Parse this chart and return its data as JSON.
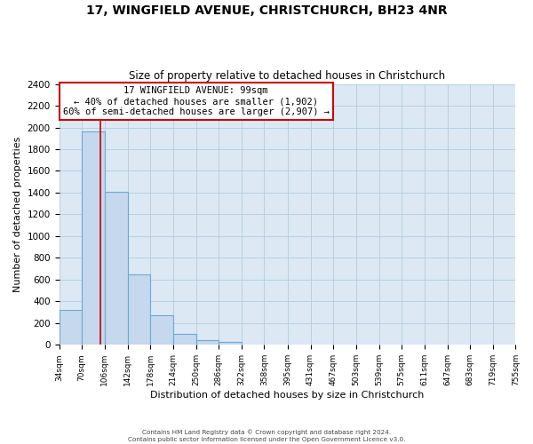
{
  "title": "17, WINGFIELD AVENUE, CHRISTCHURCH, BH23 4NR",
  "subtitle": "Size of property relative to detached houses in Christchurch",
  "xlabel": "Distribution of detached houses by size in Christchurch",
  "ylabel": "Number of detached properties",
  "bin_edges": [
    34,
    70,
    106,
    142,
    178,
    214,
    250,
    286,
    322,
    358,
    395,
    431,
    467,
    503,
    539,
    575,
    611,
    647,
    683,
    719,
    755
  ],
  "bin_counts": [
    325,
    1960,
    1410,
    650,
    275,
    100,
    45,
    25,
    0,
    0,
    0,
    0,
    0,
    0,
    0,
    0,
    0,
    0,
    0,
    0
  ],
  "bar_color": "#c5d8ee",
  "bar_edge_color": "#6aaad4",
  "property_line_x": 99,
  "annotation_text_line1": "17 WINGFIELD AVENUE: 99sqm",
  "annotation_text_line2": "← 40% of detached houses are smaller (1,902)",
  "annotation_text_line3": "60% of semi-detached houses are larger (2,907) →",
  "annotation_box_color": "#ffffff",
  "annotation_box_edge_color": "#cc0000",
  "vline_color": "#cc0000",
  "ylim": [
    0,
    2400
  ],
  "yticks": [
    0,
    200,
    400,
    600,
    800,
    1000,
    1200,
    1400,
    1600,
    1800,
    2000,
    2200,
    2400
  ],
  "xtick_labels": [
    "34sqm",
    "70sqm",
    "106sqm",
    "142sqm",
    "178sqm",
    "214sqm",
    "250sqm",
    "286sqm",
    "322sqm",
    "358sqm",
    "395sqm",
    "431sqm",
    "467sqm",
    "503sqm",
    "539sqm",
    "575sqm",
    "611sqm",
    "647sqm",
    "683sqm",
    "719sqm",
    "755sqm"
  ],
  "footer_line1": "Contains HM Land Registry data © Crown copyright and database right 2024.",
  "footer_line2": "Contains public sector information licensed under the Open Government Licence v3.0.",
  "background_color": "#ffffff",
  "ax_background_color": "#dce9f5",
  "grid_color": "#b8cfe0"
}
